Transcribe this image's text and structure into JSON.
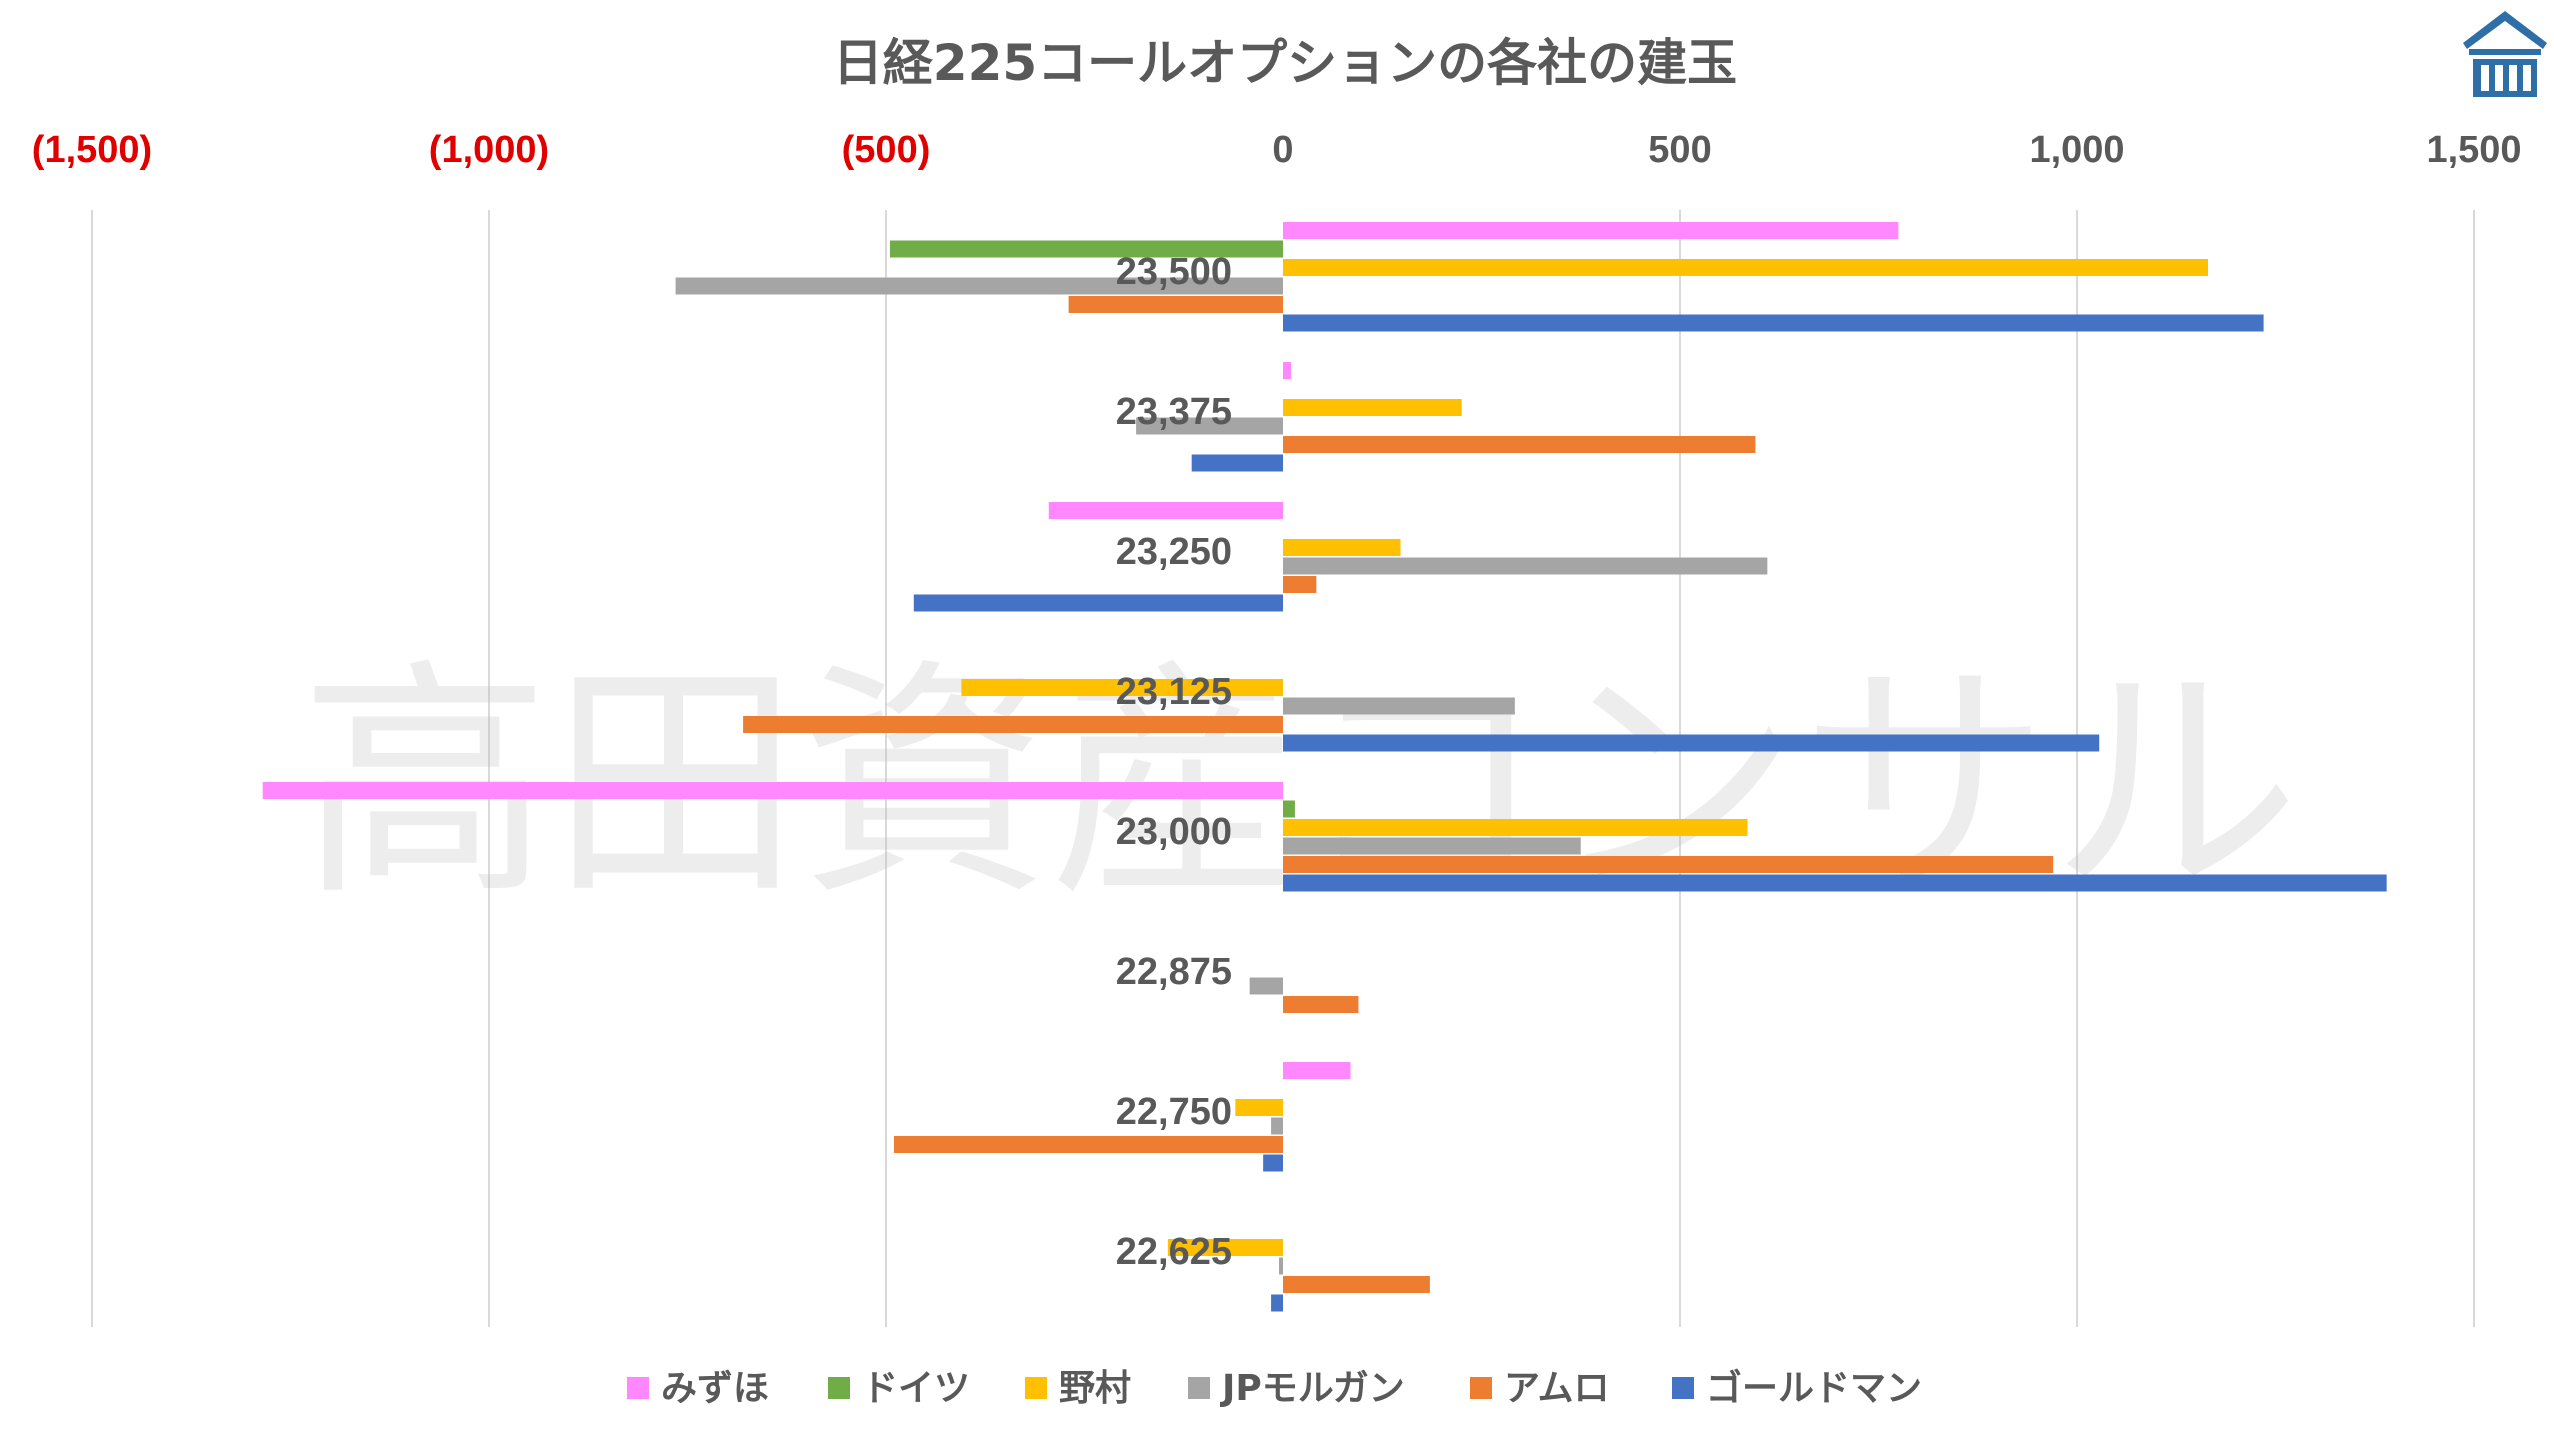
{
  "watermark": "高田資産コンサル",
  "logo": {
    "name": "building-logo-icon",
    "color": "#2e6fa7"
  },
  "chart_data": {
    "type": "bar",
    "orientation": "horizontal",
    "title": "日経225コールオプションの各社の建玉",
    "xlim": [
      -1500,
      1500
    ],
    "x_ticks": [
      {
        "value": -1500,
        "label": "(1,500)",
        "color": "#e00000"
      },
      {
        "value": -1000,
        "label": "(1,000)",
        "color": "#e00000"
      },
      {
        "value": -500,
        "label": "(500)",
        "color": "#e00000"
      },
      {
        "value": 0,
        "label": "0",
        "color": "#595959"
      },
      {
        "value": 500,
        "label": "500",
        "color": "#595959"
      },
      {
        "value": 1000,
        "label": "1,000",
        "color": "#595959"
      },
      {
        "value": 1500,
        "label": "1,500",
        "color": "#595959"
      }
    ],
    "grid": true,
    "legend_position": "bottom",
    "categories": [
      "23,500",
      "23,375",
      "23,250",
      "23,125",
      "23,000",
      "22,875",
      "22,750",
      "22,625"
    ],
    "series": [
      {
        "name": "みずほ",
        "color": "#ff88ff",
        "values": [
          775,
          10,
          -295,
          0,
          -1285,
          0,
          85,
          0
        ]
      },
      {
        "name": "ドイツ",
        "color": "#70ad47",
        "values": [
          -495,
          0,
          0,
          0,
          15,
          0,
          0,
          0
        ]
      },
      {
        "name": "野村",
        "color": "#ffc000",
        "values": [
          1165,
          225,
          148,
          -405,
          585,
          0,
          -60,
          -145
        ]
      },
      {
        "name": "JPモルガン",
        "color": "#a5a5a5",
        "values": [
          -765,
          -185,
          610,
          292,
          375,
          -42,
          -15,
          -5
        ]
      },
      {
        "name": "アムロ",
        "color": "#ed7d31",
        "values": [
          -270,
          595,
          42,
          -680,
          970,
          95,
          -490,
          185
        ]
      },
      {
        "name": "ゴールドマン",
        "color": "#4472c4",
        "values": [
          1235,
          -115,
          -465,
          1028,
          1390,
          0,
          -25,
          -15
        ]
      }
    ]
  }
}
